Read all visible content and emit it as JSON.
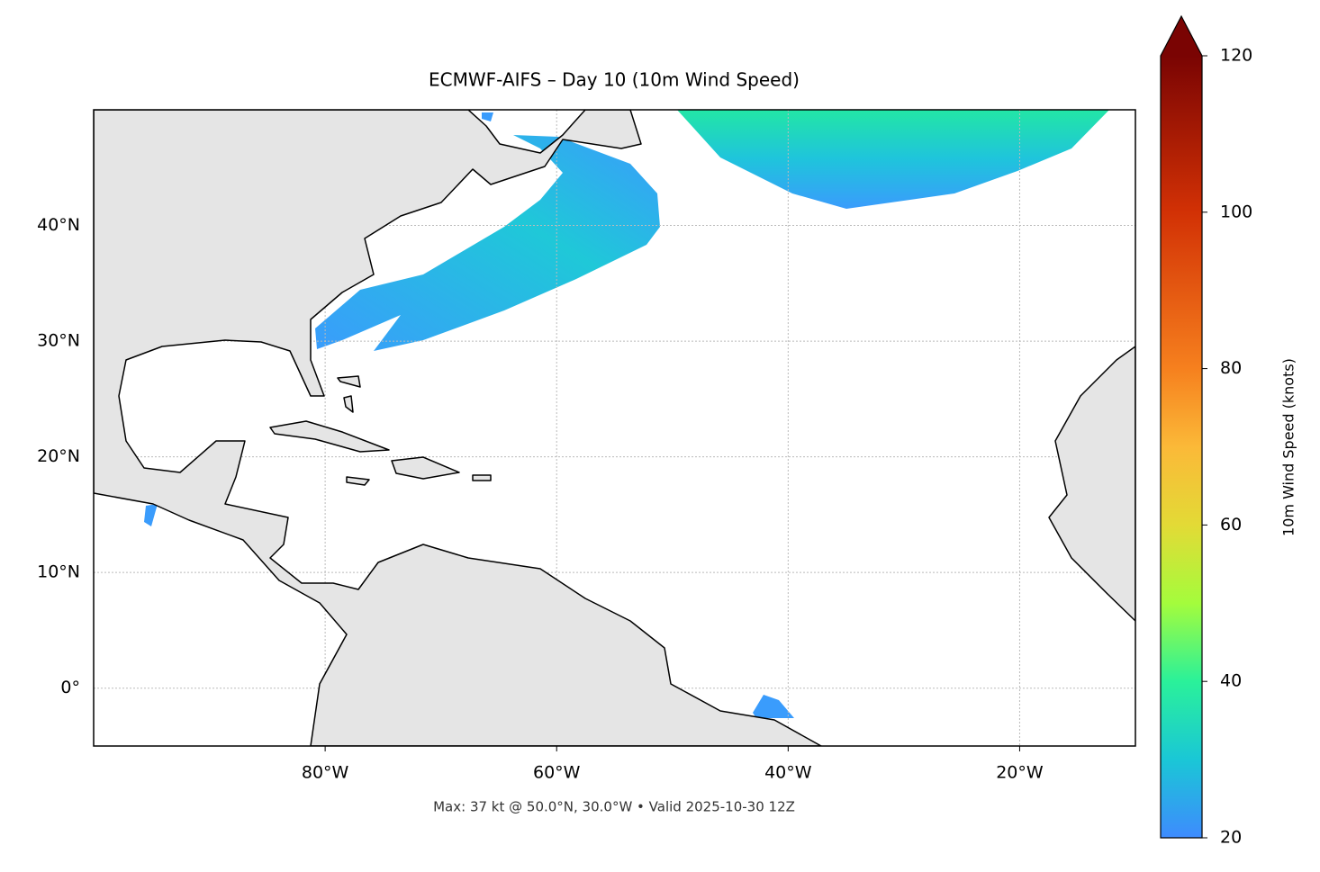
{
  "chart_data": {
    "type": "map",
    "title": "ECMWF-AIFS – Day 10 (10m Wind Speed)",
    "annotation": "Max: 37 kt @ 50.0°N, 30.0°W • Valid 2025-10-30 12Z",
    "xlim": [
      -100,
      -10
    ],
    "ylim": [
      -5,
      50
    ],
    "xticks": [
      {
        "value": -80,
        "label": "80°W"
      },
      {
        "value": -60,
        "label": "60°W"
      },
      {
        "value": -40,
        "label": "40°W"
      },
      {
        "value": -20,
        "label": "20°W"
      }
    ],
    "yticks": [
      {
        "value": 0,
        "label": "0°"
      },
      {
        "value": 10,
        "label": "10°N"
      },
      {
        "value": 20,
        "label": "20°N"
      },
      {
        "value": 30,
        "label": "30°N"
      },
      {
        "value": 40,
        "label": "40°N"
      }
    ],
    "grid": true,
    "colorbar": {
      "label": "10m Wind Speed (knots)",
      "lim": [
        20,
        120
      ],
      "ticks": [
        20,
        40,
        60,
        80,
        100,
        120
      ]
    }
  }
}
